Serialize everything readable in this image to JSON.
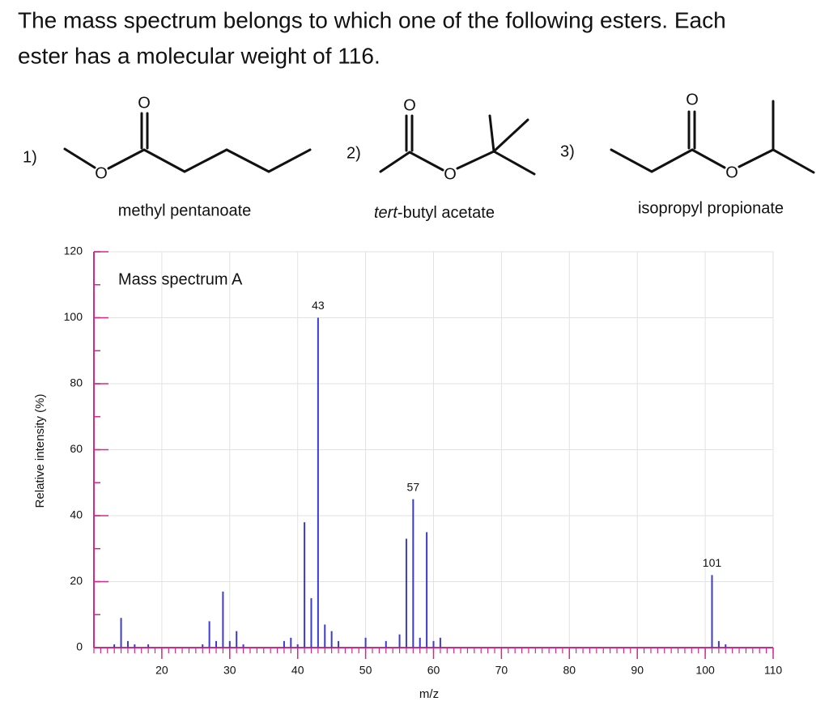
{
  "question": [
    "The mass spectrum belongs to which one of the following esters. Each",
    "ester has a molecular weight of 116."
  ],
  "options": [
    {
      "number": "1)",
      "name": "methyl pentanoate",
      "atoms": [
        "O",
        "O"
      ]
    },
    {
      "number": "2)",
      "name_italic": "tert",
      "name": "-butyl acetate",
      "atoms": [
        "O",
        "O"
      ]
    },
    {
      "number": "3)",
      "name": "isopropyl propionate",
      "atoms": [
        "O",
        "O"
      ]
    }
  ],
  "chart_data": {
    "type": "bar",
    "title": "Mass spectrum A",
    "xlabel": "m/z",
    "ylabel": "Relative intensity (%)",
    "x": [
      13,
      14,
      15,
      16,
      18,
      26,
      27,
      28,
      29,
      30,
      31,
      32,
      38,
      39,
      40,
      41,
      42,
      43,
      44,
      45,
      46,
      50,
      53,
      55,
      56,
      57,
      58,
      59,
      60,
      61,
      101,
      102,
      103
    ],
    "values": [
      1,
      9,
      2,
      1,
      1,
      1,
      8,
      2,
      17,
      2,
      5,
      1,
      2,
      3,
      1,
      38,
      15,
      100,
      7,
      5,
      2,
      3,
      2,
      4,
      33,
      45,
      3,
      35,
      2,
      3,
      22,
      2,
      1
    ],
    "color": "#3b3bd0",
    "axis_color": "#d02a8c",
    "annotations": [
      {
        "label": "43",
        "x": 43
      },
      {
        "label": "57",
        "x": 57
      },
      {
        "label": "101",
        "x": 101
      }
    ],
    "xlim": [
      10,
      110
    ],
    "ylim": [
      0,
      120
    ],
    "xticks": [
      20,
      30,
      40,
      50,
      60,
      70,
      80,
      90,
      100,
      110
    ],
    "yticks": [
      0,
      20,
      40,
      60,
      80,
      100,
      120
    ],
    "grid": true
  }
}
